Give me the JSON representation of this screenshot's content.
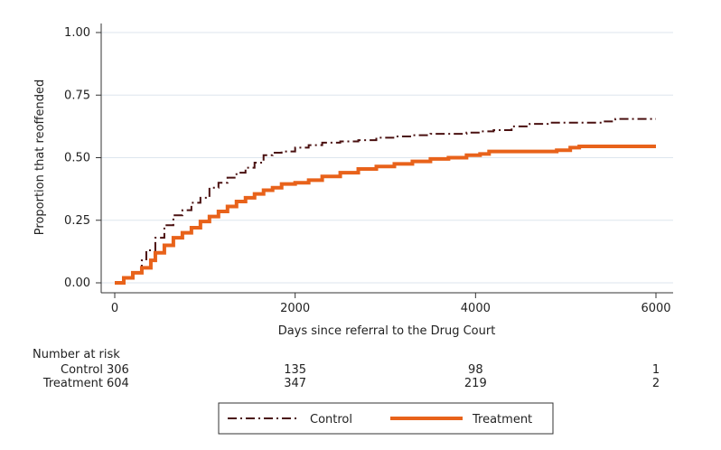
{
  "chart_data": {
    "type": "line",
    "xlabel": "Days since referral to the Drug Court",
    "ylabel": "Proportion that reoffended",
    "xlim": [
      0,
      6000
    ],
    "ylim": [
      0,
      1
    ],
    "x_ticks": [
      "0",
      "2000",
      "4000",
      "6000"
    ],
    "y_ticks": [
      "0.00",
      "0.25",
      "0.50",
      "0.75",
      "1.00"
    ],
    "grid": "horizontal",
    "legend_position": "bottom",
    "series": [
      {
        "name": "Control",
        "color": "#4a1010",
        "style": "dash-dot",
        "points": [
          [
            0,
            0
          ],
          [
            100,
            0.02
          ],
          [
            200,
            0.04
          ],
          [
            300,
            0.09
          ],
          [
            350,
            0.13
          ],
          [
            450,
            0.18
          ],
          [
            550,
            0.23
          ],
          [
            650,
            0.27
          ],
          [
            750,
            0.29
          ],
          [
            850,
            0.32
          ],
          [
            950,
            0.34
          ],
          [
            1050,
            0.38
          ],
          [
            1150,
            0.4
          ],
          [
            1250,
            0.42
          ],
          [
            1350,
            0.44
          ],
          [
            1450,
            0.46
          ],
          [
            1550,
            0.48
          ],
          [
            1650,
            0.51
          ],
          [
            1750,
            0.52
          ],
          [
            1850,
            0.525
          ],
          [
            2000,
            0.54
          ],
          [
            2150,
            0.55
          ],
          [
            2300,
            0.56
          ],
          [
            2500,
            0.565
          ],
          [
            2700,
            0.57
          ],
          [
            2900,
            0.58
          ],
          [
            3100,
            0.585
          ],
          [
            3300,
            0.59
          ],
          [
            3500,
            0.595
          ],
          [
            3700,
            0.595
          ],
          [
            3900,
            0.6
          ],
          [
            4050,
            0.605
          ],
          [
            4200,
            0.61
          ],
          [
            4400,
            0.625
          ],
          [
            4600,
            0.635
          ],
          [
            4800,
            0.64
          ],
          [
            5000,
            0.64
          ],
          [
            5200,
            0.64
          ],
          [
            5400,
            0.645
          ],
          [
            5550,
            0.655
          ],
          [
            6000,
            0.655
          ]
        ]
      },
      {
        "name": "Treatment",
        "color": "#e8621a",
        "style": "solid",
        "points": [
          [
            0,
            0
          ],
          [
            100,
            0.02
          ],
          [
            200,
            0.04
          ],
          [
            300,
            0.06
          ],
          [
            400,
            0.09
          ],
          [
            450,
            0.12
          ],
          [
            550,
            0.15
          ],
          [
            650,
            0.18
          ],
          [
            750,
            0.2
          ],
          [
            850,
            0.22
          ],
          [
            950,
            0.245
          ],
          [
            1050,
            0.265
          ],
          [
            1150,
            0.285
          ],
          [
            1250,
            0.305
          ],
          [
            1350,
            0.325
          ],
          [
            1450,
            0.34
          ],
          [
            1550,
            0.355
          ],
          [
            1650,
            0.37
          ],
          [
            1750,
            0.38
          ],
          [
            1850,
            0.395
          ],
          [
            2000,
            0.4
          ],
          [
            2150,
            0.41
          ],
          [
            2300,
            0.425
          ],
          [
            2500,
            0.44
          ],
          [
            2700,
            0.455
          ],
          [
            2900,
            0.465
          ],
          [
            3100,
            0.475
          ],
          [
            3300,
            0.485
          ],
          [
            3500,
            0.495
          ],
          [
            3700,
            0.5
          ],
          [
            3900,
            0.51
          ],
          [
            4050,
            0.515
          ],
          [
            4150,
            0.525
          ],
          [
            4400,
            0.525
          ],
          [
            4700,
            0.525
          ],
          [
            4900,
            0.53
          ],
          [
            5050,
            0.54
          ],
          [
            5150,
            0.545
          ],
          [
            5400,
            0.545
          ],
          [
            6000,
            0.545
          ]
        ]
      }
    ],
    "risk_table": {
      "header": "Number at risk",
      "rows": [
        {
          "label": "Control",
          "values": [
            "306",
            "135",
            "98",
            "1"
          ]
        },
        {
          "label": "Treatment",
          "values": [
            "604",
            "347",
            "219",
            "2"
          ]
        }
      ]
    },
    "legend": [
      "Control",
      "Treatment"
    ]
  }
}
